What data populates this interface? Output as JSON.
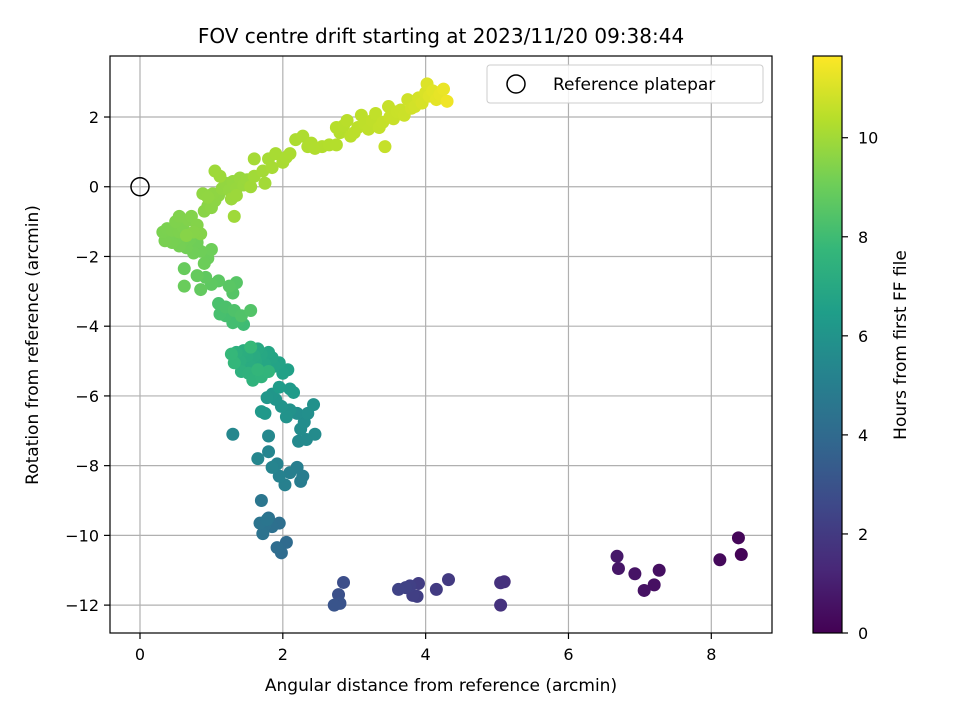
{
  "chart_data": {
    "type": "scatter",
    "title": "FOV centre drift starting at 2023/11/20 09:38:44",
    "xlabel": "Angular distance from reference (arcmin)",
    "ylabel": "Rotation from reference (arcmin)",
    "xlim": [
      -0.42,
      8.85
    ],
    "ylim": [
      -12.8,
      3.75
    ],
    "xticks": [
      0,
      2,
      4,
      6,
      8
    ],
    "xtick_labels": [
      "0",
      "2",
      "4",
      "6",
      "8"
    ],
    "yticks": [
      2,
      0,
      -2,
      -4,
      -6,
      -8,
      -10,
      -12
    ],
    "ytick_labels": [
      "2",
      "0",
      "−2",
      "−4",
      "−6",
      "−8",
      "−10",
      "−12"
    ],
    "grid": true,
    "colormap": "viridis",
    "colorbar": {
      "label": "Hours from first FF file",
      "range": [
        0,
        11.65
      ],
      "ticks": [
        0,
        2,
        4,
        6,
        8,
        10
      ],
      "tick_labels": [
        "0",
        "2",
        "4",
        "6",
        "8",
        "10"
      ]
    },
    "legend": {
      "position": "top-right",
      "entries": [
        {
          "label": "Reference platepar",
          "marker": "open-circle"
        }
      ]
    },
    "reference_point": {
      "x": 0,
      "y": 0
    },
    "points": [
      {
        "x": 8.42,
        "y": -10.55,
        "h": 0.1
      },
      {
        "x": 8.38,
        "y": -10.07,
        "h": 0.15
      },
      {
        "x": 8.12,
        "y": -10.7,
        "h": 0.25
      },
      {
        "x": 7.27,
        "y": -11.0,
        "h": 0.45
      },
      {
        "x": 7.2,
        "y": -11.42,
        "h": 0.5
      },
      {
        "x": 7.06,
        "y": -11.58,
        "h": 0.55
      },
      {
        "x": 6.93,
        "y": -11.1,
        "h": 0.6
      },
      {
        "x": 6.7,
        "y": -10.95,
        "h": 0.7
      },
      {
        "x": 6.68,
        "y": -10.6,
        "h": 0.75
      },
      {
        "x": 5.1,
        "y": -11.33,
        "h": 1.6
      },
      {
        "x": 5.05,
        "y": -11.36,
        "h": 1.65
      },
      {
        "x": 5.05,
        "y": -12.0,
        "h": 1.7
      },
      {
        "x": 4.32,
        "y": -11.27,
        "h": 2.0
      },
      {
        "x": 4.15,
        "y": -11.55,
        "h": 2.05
      },
      {
        "x": 3.9,
        "y": -11.38,
        "h": 2.1
      },
      {
        "x": 3.88,
        "y": -11.75,
        "h": 2.15
      },
      {
        "x": 3.82,
        "y": -11.72,
        "h": 2.2
      },
      {
        "x": 3.78,
        "y": -11.45,
        "h": 2.25
      },
      {
        "x": 3.72,
        "y": -11.5,
        "h": 2.3
      },
      {
        "x": 3.62,
        "y": -11.55,
        "h": 2.35
      },
      {
        "x": 2.85,
        "y": -11.35,
        "h": 2.8
      },
      {
        "x": 2.78,
        "y": -11.7,
        "h": 2.9
      },
      {
        "x": 2.8,
        "y": -11.95,
        "h": 3.0
      },
      {
        "x": 2.72,
        "y": -12.0,
        "h": 3.05
      },
      {
        "x": 2.05,
        "y": -10.2,
        "h": 4.05
      },
      {
        "x": 1.98,
        "y": -10.5,
        "h": 4.1
      },
      {
        "x": 1.92,
        "y": -10.35,
        "h": 4.15
      },
      {
        "x": 1.95,
        "y": -9.65,
        "h": 4.25
      },
      {
        "x": 1.85,
        "y": -9.75,
        "h": 4.3
      },
      {
        "x": 1.8,
        "y": -9.5,
        "h": 4.35
      },
      {
        "x": 1.75,
        "y": -9.7,
        "h": 4.4
      },
      {
        "x": 1.72,
        "y": -9.95,
        "h": 4.45
      },
      {
        "x": 1.68,
        "y": -9.65,
        "h": 4.5
      },
      {
        "x": 1.78,
        "y": -9.55,
        "h": 4.55
      },
      {
        "x": 1.7,
        "y": -9.0,
        "h": 4.6
      },
      {
        "x": 2.25,
        "y": -8.45,
        "h": 4.9
      },
      {
        "x": 2.28,
        "y": -8.3,
        "h": 4.95
      },
      {
        "x": 2.2,
        "y": -8.05,
        "h": 5.0
      },
      {
        "x": 2.1,
        "y": -8.2,
        "h": 5.05
      },
      {
        "x": 2.03,
        "y": -8.55,
        "h": 5.1
      },
      {
        "x": 1.95,
        "y": -8.3,
        "h": 5.15
      },
      {
        "x": 1.92,
        "y": -7.95,
        "h": 5.2
      },
      {
        "x": 1.85,
        "y": -8.05,
        "h": 5.25
      },
      {
        "x": 1.8,
        "y": -7.6,
        "h": 5.3
      },
      {
        "x": 1.65,
        "y": -7.8,
        "h": 5.35
      },
      {
        "x": 1.3,
        "y": -7.1,
        "h": 5.4
      },
      {
        "x": 1.8,
        "y": -7.15,
        "h": 5.45
      },
      {
        "x": 2.22,
        "y": -7.3,
        "h": 5.5
      },
      {
        "x": 2.33,
        "y": -7.25,
        "h": 5.55
      },
      {
        "x": 2.45,
        "y": -7.1,
        "h": 5.6
      },
      {
        "x": 2.25,
        "y": -6.95,
        "h": 5.65
      },
      {
        "x": 2.3,
        "y": -6.75,
        "h": 5.7
      },
      {
        "x": 2.2,
        "y": -6.5,
        "h": 5.75
      },
      {
        "x": 2.35,
        "y": -6.5,
        "h": 5.8
      },
      {
        "x": 2.43,
        "y": -6.25,
        "h": 5.85
      },
      {
        "x": 2.1,
        "y": -6.4,
        "h": 5.9
      },
      {
        "x": 2.05,
        "y": -6.6,
        "h": 5.95
      },
      {
        "x": 1.98,
        "y": -6.3,
        "h": 6.0
      },
      {
        "x": 1.9,
        "y": -6.1,
        "h": 6.05
      },
      {
        "x": 1.85,
        "y": -5.95,
        "h": 6.1
      },
      {
        "x": 1.78,
        "y": -6.05,
        "h": 6.15
      },
      {
        "x": 1.75,
        "y": -6.5,
        "h": 6.2
      },
      {
        "x": 1.7,
        "y": -6.45,
        "h": 6.25
      },
      {
        "x": 2.1,
        "y": -5.8,
        "h": 6.3
      },
      {
        "x": 2.15,
        "y": -5.9,
        "h": 6.35
      },
      {
        "x": 1.95,
        "y": -5.75,
        "h": 6.4
      },
      {
        "x": 2.07,
        "y": -5.25,
        "h": 6.6
      },
      {
        "x": 2.0,
        "y": -5.35,
        "h": 6.65
      },
      {
        "x": 1.95,
        "y": -5.05,
        "h": 6.7
      },
      {
        "x": 1.88,
        "y": -5.15,
        "h": 6.75
      },
      {
        "x": 1.85,
        "y": -4.9,
        "h": 6.8
      },
      {
        "x": 1.8,
        "y": -4.75,
        "h": 6.85
      },
      {
        "x": 1.75,
        "y": -5.1,
        "h": 6.9
      },
      {
        "x": 1.7,
        "y": -4.8,
        "h": 6.95
      },
      {
        "x": 1.65,
        "y": -4.65,
        "h": 7.0
      },
      {
        "x": 1.62,
        "y": -5.0,
        "h": 7.05
      },
      {
        "x": 1.6,
        "y": -4.85,
        "h": 7.1
      },
      {
        "x": 1.55,
        "y": -5.15,
        "h": 7.15
      },
      {
        "x": 1.5,
        "y": -4.85,
        "h": 7.2
      },
      {
        "x": 1.45,
        "y": -4.7,
        "h": 7.25
      },
      {
        "x": 1.4,
        "y": -5.0,
        "h": 7.3
      },
      {
        "x": 1.35,
        "y": -4.75,
        "h": 7.35
      },
      {
        "x": 1.42,
        "y": -5.3,
        "h": 7.4
      },
      {
        "x": 1.52,
        "y": -5.35,
        "h": 7.45
      },
      {
        "x": 1.58,
        "y": -5.55,
        "h": 7.5
      },
      {
        "x": 1.7,
        "y": -5.45,
        "h": 7.55
      },
      {
        "x": 1.8,
        "y": -5.3,
        "h": 7.6
      },
      {
        "x": 1.65,
        "y": -5.25,
        "h": 7.65
      },
      {
        "x": 1.32,
        "y": -5.05,
        "h": 7.7
      },
      {
        "x": 1.28,
        "y": -4.8,
        "h": 7.75
      },
      {
        "x": 1.55,
        "y": -4.6,
        "h": 7.8
      },
      {
        "x": 1.45,
        "y": -3.95,
        "h": 8.0
      },
      {
        "x": 1.38,
        "y": -3.85,
        "h": 8.05
      },
      {
        "x": 1.3,
        "y": -3.9,
        "h": 8.1
      },
      {
        "x": 1.2,
        "y": -3.7,
        "h": 8.15
      },
      {
        "x": 1.12,
        "y": -3.65,
        "h": 8.2
      },
      {
        "x": 1.1,
        "y": -3.35,
        "h": 8.25
      },
      {
        "x": 1.2,
        "y": -3.45,
        "h": 8.3
      },
      {
        "x": 1.32,
        "y": -3.55,
        "h": 8.35
      },
      {
        "x": 1.42,
        "y": -3.7,
        "h": 8.4
      },
      {
        "x": 1.55,
        "y": -3.55,
        "h": 8.45
      },
      {
        "x": 1.3,
        "y": -3.05,
        "h": 8.5
      },
      {
        "x": 1.35,
        "y": -2.75,
        "h": 8.55
      },
      {
        "x": 1.25,
        "y": -2.85,
        "h": 8.6
      },
      {
        "x": 1.1,
        "y": -2.7,
        "h": 8.65
      },
      {
        "x": 1.0,
        "y": -2.8,
        "h": 8.7
      },
      {
        "x": 0.92,
        "y": -2.6,
        "h": 8.75
      },
      {
        "x": 0.85,
        "y": -2.95,
        "h": 8.8
      },
      {
        "x": 0.8,
        "y": -2.55,
        "h": 8.85
      },
      {
        "x": 0.62,
        "y": -2.35,
        "h": 8.9
      },
      {
        "x": 0.62,
        "y": -2.85,
        "h": 8.95
      },
      {
        "x": 0.95,
        "y": -2.05,
        "h": 9.0
      },
      {
        "x": 0.9,
        "y": -2.2,
        "h": 9.02
      },
      {
        "x": 1.0,
        "y": -1.8,
        "h": 9.04
      },
      {
        "x": 0.85,
        "y": -1.85,
        "h": 9.06
      },
      {
        "x": 0.8,
        "y": -1.6,
        "h": 9.08
      },
      {
        "x": 0.75,
        "y": -1.9,
        "h": 9.1
      },
      {
        "x": 0.7,
        "y": -1.5,
        "h": 9.12
      },
      {
        "x": 0.65,
        "y": -1.75,
        "h": 9.14
      },
      {
        "x": 0.6,
        "y": -1.55,
        "h": 9.16
      },
      {
        "x": 0.55,
        "y": -1.7,
        "h": 9.18
      },
      {
        "x": 0.5,
        "y": -1.5,
        "h": 9.2
      },
      {
        "x": 0.45,
        "y": -1.6,
        "h": 9.22
      },
      {
        "x": 0.4,
        "y": -1.4,
        "h": 9.24
      },
      {
        "x": 0.35,
        "y": -1.55,
        "h": 9.26
      },
      {
        "x": 0.32,
        "y": -1.3,
        "h": 9.28
      },
      {
        "x": 0.38,
        "y": -1.2,
        "h": 9.3
      },
      {
        "x": 0.45,
        "y": -1.25,
        "h": 9.32
      },
      {
        "x": 0.55,
        "y": -1.3,
        "h": 9.34
      },
      {
        "x": 0.6,
        "y": -1.15,
        "h": 9.36
      },
      {
        "x": 0.5,
        "y": -1.0,
        "h": 9.38
      },
      {
        "x": 0.55,
        "y": -0.85,
        "h": 9.4
      },
      {
        "x": 0.68,
        "y": -0.95,
        "h": 9.42
      },
      {
        "x": 0.72,
        "y": -0.85,
        "h": 9.44
      },
      {
        "x": 0.8,
        "y": -1.1,
        "h": 9.46
      },
      {
        "x": 0.85,
        "y": -1.35,
        "h": 9.48
      },
      {
        "x": 0.75,
        "y": -1.3,
        "h": 9.5
      },
      {
        "x": 0.65,
        "y": -1.4,
        "h": 9.52
      },
      {
        "x": 0.9,
        "y": -0.7,
        "h": 9.55
      },
      {
        "x": 0.95,
        "y": -0.55,
        "h": 9.58
      },
      {
        "x": 1.0,
        "y": -0.6,
        "h": 9.6
      },
      {
        "x": 1.05,
        "y": -0.4,
        "h": 9.62
      },
      {
        "x": 1.1,
        "y": -0.25,
        "h": 9.64
      },
      {
        "x": 1.02,
        "y": -0.2,
        "h": 9.66
      },
      {
        "x": 0.88,
        "y": -0.2,
        "h": 9.68
      },
      {
        "x": 0.95,
        "y": -0.3,
        "h": 9.7
      },
      {
        "x": 1.15,
        "y": -0.05,
        "h": 9.72
      },
      {
        "x": 1.2,
        "y": 0.1,
        "h": 9.74
      },
      {
        "x": 1.25,
        "y": -0.1,
        "h": 9.76
      },
      {
        "x": 1.3,
        "y": 0.15,
        "h": 9.78
      },
      {
        "x": 1.35,
        "y": -0.05,
        "h": 9.8
      },
      {
        "x": 1.4,
        "y": 0.25,
        "h": 9.82
      },
      {
        "x": 1.45,
        "y": 0.05,
        "h": 9.84
      },
      {
        "x": 1.5,
        "y": 0.2,
        "h": 9.86
      },
      {
        "x": 1.28,
        "y": -0.35,
        "h": 9.88
      },
      {
        "x": 1.35,
        "y": -0.25,
        "h": 9.9
      },
      {
        "x": 1.12,
        "y": 0.3,
        "h": 9.92
      },
      {
        "x": 1.05,
        "y": 0.45,
        "h": 9.94
      },
      {
        "x": 1.32,
        "y": -0.85,
        "h": 9.96
      },
      {
        "x": 1.55,
        "y": 0.0,
        "h": 9.98
      },
      {
        "x": 1.6,
        "y": 0.3,
        "h": 10.0
      },
      {
        "x": 1.75,
        "y": 0.1,
        "h": 10.02
      },
      {
        "x": 1.72,
        "y": 0.45,
        "h": 10.04
      },
      {
        "x": 1.6,
        "y": 0.8,
        "h": 10.06
      },
      {
        "x": 1.8,
        "y": 0.8,
        "h": 10.08
      },
      {
        "x": 1.85,
        "y": 0.55,
        "h": 10.1
      },
      {
        "x": 1.9,
        "y": 0.95,
        "h": 10.12
      },
      {
        "x": 2.0,
        "y": 0.7,
        "h": 10.14
      },
      {
        "x": 2.05,
        "y": 0.85,
        "h": 10.16
      },
      {
        "x": 2.1,
        "y": 0.95,
        "h": 10.18
      },
      {
        "x": 2.18,
        "y": 1.35,
        "h": 10.2
      },
      {
        "x": 2.28,
        "y": 1.45,
        "h": 10.22
      },
      {
        "x": 2.35,
        "y": 1.15,
        "h": 10.24
      },
      {
        "x": 2.4,
        "y": 1.25,
        "h": 10.26
      },
      {
        "x": 2.45,
        "y": 1.1,
        "h": 10.28
      },
      {
        "x": 2.55,
        "y": 1.15,
        "h": 10.3
      },
      {
        "x": 2.65,
        "y": 1.2,
        "h": 10.32
      },
      {
        "x": 2.75,
        "y": 1.2,
        "h": 10.34
      },
      {
        "x": 2.8,
        "y": 1.55,
        "h": 10.36
      },
      {
        "x": 2.75,
        "y": 1.7,
        "h": 10.38
      },
      {
        "x": 2.85,
        "y": 1.75,
        "h": 10.4
      },
      {
        "x": 2.9,
        "y": 1.9,
        "h": 10.42
      },
      {
        "x": 2.95,
        "y": 1.45,
        "h": 10.44
      },
      {
        "x": 3.0,
        "y": 1.55,
        "h": 10.46
      },
      {
        "x": 3.05,
        "y": 1.7,
        "h": 10.48
      },
      {
        "x": 3.1,
        "y": 2.05,
        "h": 10.5
      },
      {
        "x": 3.15,
        "y": 1.8,
        "h": 10.52
      },
      {
        "x": 3.2,
        "y": 1.65,
        "h": 10.54
      },
      {
        "x": 3.25,
        "y": 1.9,
        "h": 10.56
      },
      {
        "x": 3.3,
        "y": 2.1,
        "h": 10.58
      },
      {
        "x": 3.35,
        "y": 1.7,
        "h": 10.6
      },
      {
        "x": 3.4,
        "y": 1.85,
        "h": 10.62
      },
      {
        "x": 3.43,
        "y": 1.15,
        "h": 10.64
      },
      {
        "x": 3.48,
        "y": 2.3,
        "h": 10.66
      },
      {
        "x": 3.5,
        "y": 2.0,
        "h": 10.68
      },
      {
        "x": 3.55,
        "y": 1.95,
        "h": 10.7
      },
      {
        "x": 3.6,
        "y": 2.15,
        "h": 10.72
      },
      {
        "x": 3.65,
        "y": 2.2,
        "h": 10.74
      },
      {
        "x": 3.7,
        "y": 2.05,
        "h": 10.76
      },
      {
        "x": 3.75,
        "y": 2.5,
        "h": 10.8
      },
      {
        "x": 3.8,
        "y": 2.25,
        "h": 10.84
      },
      {
        "x": 3.85,
        "y": 2.3,
        "h": 10.88
      },
      {
        "x": 3.9,
        "y": 2.55,
        "h": 10.92
      },
      {
        "x": 3.95,
        "y": 2.4,
        "h": 10.96
      },
      {
        "x": 4.0,
        "y": 2.7,
        "h": 11.0
      },
      {
        "x": 4.02,
        "y": 2.95,
        "h": 11.05
      },
      {
        "x": 4.05,
        "y": 2.6,
        "h": 11.1
      },
      {
        "x": 4.1,
        "y": 2.75,
        "h": 11.15
      },
      {
        "x": 4.15,
        "y": 2.5,
        "h": 11.2
      },
      {
        "x": 4.2,
        "y": 2.65,
        "h": 11.25
      },
      {
        "x": 4.25,
        "y": 2.8,
        "h": 11.3
      },
      {
        "x": 4.3,
        "y": 2.45,
        "h": 11.4
      }
    ]
  }
}
